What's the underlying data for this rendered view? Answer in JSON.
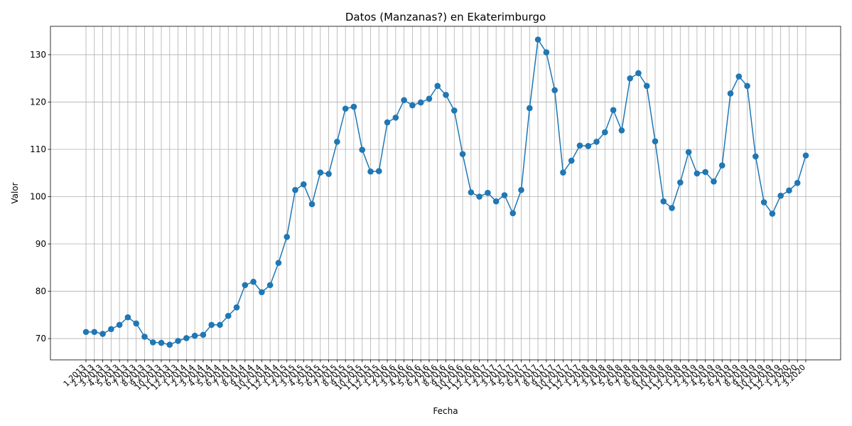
{
  "chart_data": {
    "type": "line",
    "title": "Datos (Manzanas?) en Ekaterimburgo",
    "xlabel": "Fecha",
    "ylabel": "Valor",
    "ylim": [
      65.5,
      136
    ],
    "yticks": [
      70,
      80,
      90,
      100,
      110,
      120,
      130
    ],
    "grid": true,
    "legend": "none",
    "line_color": "#1f77b4",
    "marker": "circle",
    "categories": [
      "1.2013",
      "2.2013",
      "3.2013",
      "4.2013",
      "5.2013",
      "6.2013",
      "7.2013",
      "8.2013",
      "9.2013",
      "10.2013",
      "11.2013",
      "12.2013",
      "1.2014",
      "2.2014",
      "3.2014",
      "4.2014",
      "5.2014",
      "6.2014",
      "7.2014",
      "8.2014",
      "9.2014",
      "10.2014",
      "11.2014",
      "12.2014",
      "1.2015",
      "2.2015",
      "3.2015",
      "4.2015",
      "5.2015",
      "6.2015",
      "7.2015",
      "8.2015",
      "9.2015",
      "10.2015",
      "11.2015",
      "12.2015",
      "1.2016",
      "2.2016",
      "3.2016",
      "4.2016",
      "5.2016",
      "6.2016",
      "7.2016",
      "8.2016",
      "9.2016",
      "10.2016",
      "11.2016",
      "12.2016",
      "1.2017",
      "2.2017",
      "3.2017",
      "4.2017",
      "5.2017",
      "6.2017",
      "7.2017",
      "8.2017",
      "9.2017",
      "10.2017",
      "11.2017",
      "12.2017",
      "1.2018",
      "2.2018",
      "3.2018",
      "4.2018",
      "5.2018",
      "6.2018",
      "7.2018",
      "8.2018",
      "9.2018",
      "10.2018",
      "11.2018",
      "12.2018",
      "1.2019",
      "2.2019",
      "3.2019",
      "4.2019",
      "5.2019",
      "6.2019",
      "7.2019",
      "8.2019",
      "9.2019",
      "10.2019",
      "11.2019",
      "12.2019",
      "1.2020",
      "2.2020",
      "3.2020"
    ],
    "values": [
      71.4,
      71.4,
      71.0,
      72.0,
      72.9,
      74.5,
      73.2,
      70.4,
      69.2,
      69.1,
      68.7,
      69.5,
      70.1,
      70.6,
      70.8,
      72.9,
      72.9,
      74.8,
      76.6,
      81.3,
      82.0,
      79.8,
      81.3,
      86.0,
      91.5,
      101.4,
      102.6,
      98.4,
      105.1,
      104.8,
      111.6,
      118.6,
      119.0,
      109.9,
      105.3,
      105.4,
      115.7,
      116.7,
      120.4,
      119.3,
      119.9,
      120.7,
      123.4,
      121.5,
      118.2,
      109.0,
      100.9,
      100.0,
      100.8,
      99.0,
      100.3,
      96.5,
      101.4,
      118.7,
      133.2,
      130.5,
      122.5,
      105.1,
      107.6,
      110.8,
      110.7,
      111.6,
      113.6,
      118.3,
      114.0,
      125.0,
      126.1,
      123.4,
      111.7,
      99.0,
      97.6,
      103.0,
      109.4,
      104.9,
      105.2,
      103.2,
      106.6,
      121.8,
      125.4,
      123.4,
      108.5,
      98.8,
      96.4,
      100.2,
      101.3,
      102.9,
      108.7
    ]
  }
}
